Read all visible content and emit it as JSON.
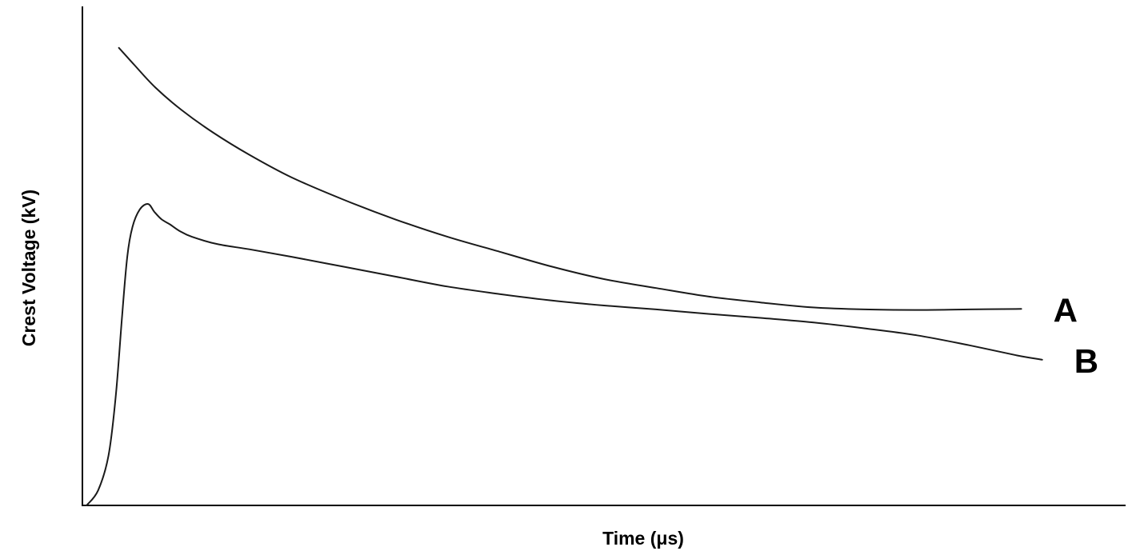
{
  "chart_data": {
    "type": "line",
    "xlabel": "Time (μs)",
    "ylabel": "Crest Voltage (kV)",
    "xlim": [
      0,
      100
    ],
    "ylim": [
      0,
      100
    ],
    "grid": false,
    "axis_ticks": false,
    "series": [
      {
        "name": "A",
        "color": "#1a1a1a",
        "points": [
          [
            3.5,
            92
          ],
          [
            5,
            88.5
          ],
          [
            7,
            84
          ],
          [
            9.5,
            79.5
          ],
          [
            12.5,
            75
          ],
          [
            16,
            70.5
          ],
          [
            20,
            66
          ],
          [
            25,
            61.5
          ],
          [
            30,
            57.5
          ],
          [
            35,
            54
          ],
          [
            40,
            51
          ],
          [
            45,
            48
          ],
          [
            50,
            45.5
          ],
          [
            55,
            43.7
          ],
          [
            60,
            42
          ],
          [
            65,
            40.8
          ],
          [
            70,
            39.8
          ],
          [
            75,
            39.4
          ],
          [
            80,
            39.3
          ],
          [
            85,
            39.4
          ],
          [
            90,
            39.5
          ]
        ]
      },
      {
        "name": "B",
        "color": "#1a1a1a",
        "points": [
          [
            0.4,
            0
          ],
          [
            1.5,
            3
          ],
          [
            2.5,
            10
          ],
          [
            3.2,
            22
          ],
          [
            3.8,
            38
          ],
          [
            4.3,
            50
          ],
          [
            4.8,
            56
          ],
          [
            5.5,
            59.5
          ],
          [
            6.3,
            60.6
          ],
          [
            6.9,
            59
          ],
          [
            7.6,
            57.5
          ],
          [
            8.4,
            56.5
          ],
          [
            9.3,
            55.2
          ],
          [
            10.5,
            54
          ],
          [
            13,
            52.5
          ],
          [
            16,
            51.5
          ],
          [
            20,
            50
          ],
          [
            25,
            48
          ],
          [
            30,
            46
          ],
          [
            35,
            44
          ],
          [
            40,
            42.5
          ],
          [
            45,
            41.2
          ],
          [
            50,
            40.2
          ],
          [
            55,
            39.4
          ],
          [
            60,
            38.5
          ],
          [
            65,
            37.7
          ],
          [
            70,
            36.8
          ],
          [
            75,
            35.6
          ],
          [
            80,
            34.2
          ],
          [
            85,
            32.2
          ],
          [
            89.5,
            30.2
          ],
          [
            92,
            29.3
          ]
        ]
      }
    ]
  }
}
